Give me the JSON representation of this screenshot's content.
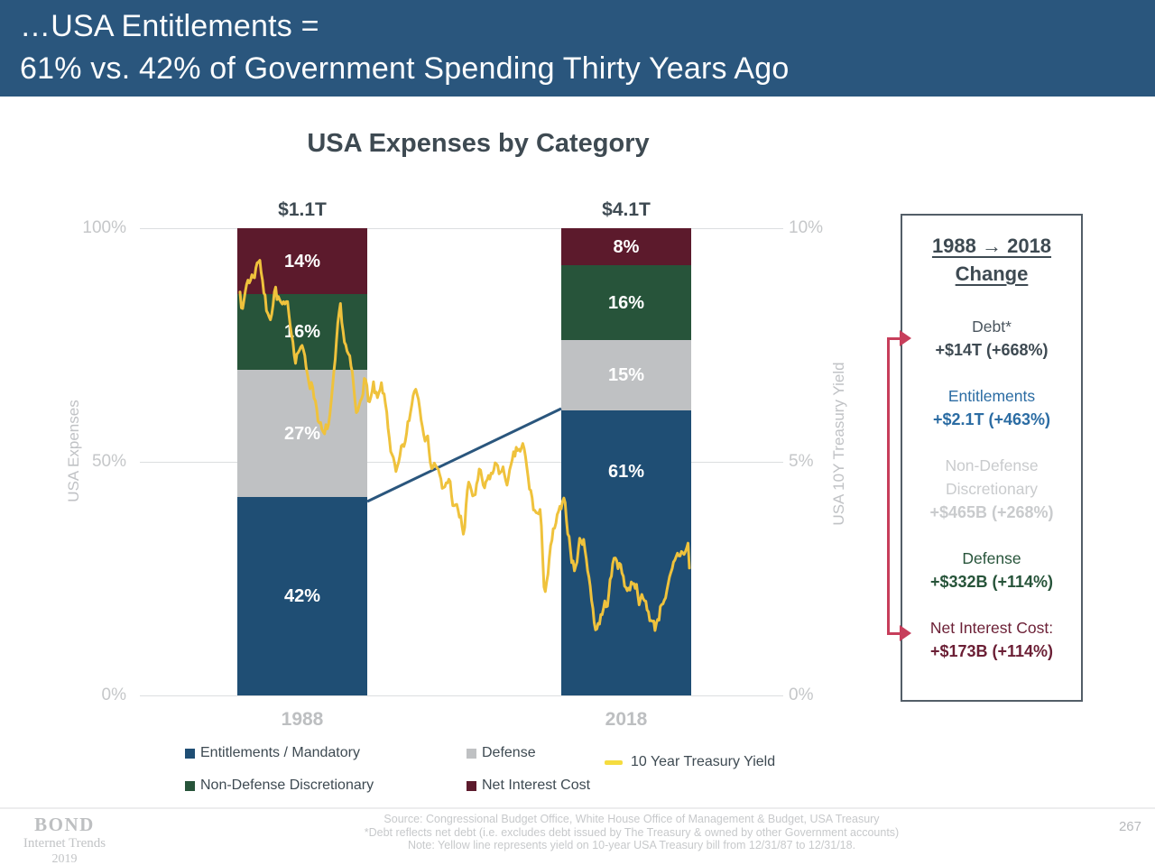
{
  "header": {
    "title_line1": "…USA Entitlements =",
    "title_line2": "61% vs. 42% of Government Spending Thirty Years Ago",
    "background_color": "#2A567D"
  },
  "chart_data": {
    "type": "bar",
    "subtype": "stacked-100pct-columns-with-line-overlay",
    "title": "USA Expenses by Category",
    "categories": [
      "1988",
      "2018"
    ],
    "bar_totals": [
      "$1.1T",
      "$4.1T"
    ],
    "series": [
      {
        "name": "Entitlements / Mandatory",
        "color": "#1F4E74",
        "values": [
          42,
          61
        ]
      },
      {
        "name": "Defense",
        "color": "#BFC1C3",
        "values": [
          27,
          15
        ]
      },
      {
        "name": "Non-Defense Discretionary",
        "color": "#27543A",
        "values": [
          16,
          16
        ]
      },
      {
        "name": "Net Interest Cost",
        "color": "#5C1A2C",
        "values": [
          14,
          8
        ]
      }
    ],
    "left_axis": {
      "label": "USA Expenses",
      "ticks": [
        "100%",
        "50%",
        "0%"
      ],
      "range": [
        0,
        100
      ]
    },
    "right_axis": {
      "label": "USA 10Y Treasury Yield",
      "ticks": [
        "10%",
        "5%",
        "0%"
      ],
      "range": [
        0,
        10
      ]
    },
    "connector_line": {
      "meaning": "links 42% (1988) to 61% (2018) Entitlements share",
      "color": "#2A567D"
    },
    "line_series": {
      "name": "10 Year Treasury Yield",
      "color": "#EFC23C",
      "x_unit": "years after 12/31/87",
      "t": [
        0,
        0.2,
        0.5,
        0.9,
        1.2,
        1.35,
        1.6,
        1.9,
        2.1,
        2.4,
        2.6,
        3.0,
        3.4,
        3.8,
        4.2,
        4.6,
        5.0,
        5.4,
        5.8,
        6.1,
        6.4,
        6.9,
        7.2,
        7.5,
        7.8,
        8.05,
        8.3,
        8.55,
        8.9,
        9.2,
        9.5,
        9.8,
        10.1,
        10.45,
        10.8,
        11.1,
        11.5,
        11.8,
        12.1,
        12.5,
        12.8,
        13.2,
        13.6,
        14.0,
        14.4,
        14.8,
        15.1,
        15.45,
        15.7,
        16.1,
        16.5,
        16.9,
        17.3,
        17.8,
        18.3,
        18.8,
        19.2,
        19.55,
        19.9,
        20.3,
        20.7,
        21.0,
        21.4,
        21.8,
        22.3,
        22.7,
        23.1,
        23.5,
        23.9,
        24.2,
        24.55,
        24.9,
        25.3,
        25.7,
        26.0,
        26.4,
        26.8,
        27.2,
        27.6,
        28.0,
        28.35,
        28.6,
        28.9,
        29.3,
        29.7,
        30.0,
        30.4,
        30.7,
        30.92,
        31.0
      ],
      "yield_pct": [
        8.8,
        8.3,
        8.9,
        9.0,
        9.3,
        9.5,
        8.9,
        8.1,
        8.2,
        8.9,
        8.6,
        8.2,
        8.0,
        7.4,
        7.6,
        6.9,
        6.7,
        6.1,
        5.4,
        5.7,
        6.3,
        8.0,
        7.5,
        7.1,
        6.5,
        5.7,
        6.3,
        6.9,
        6.3,
        6.5,
        6.1,
        6.4,
        5.9,
        5.2,
        4.5,
        4.9,
        5.4,
        6.0,
        6.7,
        6.2,
        5.9,
        5.1,
        5.0,
        4.2,
        4.6,
        4.0,
        3.8,
        3.4,
        4.4,
        4.2,
        4.6,
        4.2,
        4.6,
        4.9,
        4.6,
        4.8,
        5.1,
        5.2,
        4.4,
        3.9,
        3.8,
        2.2,
        3.0,
        3.6,
        3.9,
        3.3,
        2.7,
        3.4,
        3.1,
        2.2,
        1.5,
        1.8,
        2.0,
        2.7,
        3.0,
        2.6,
        2.3,
        2.6,
        2.2,
        1.9,
        1.7,
        1.4,
        1.8,
        2.3,
        2.4,
        2.6,
        2.9,
        3.1,
        3.2,
        2.7
      ]
    }
  },
  "legend": {
    "columns": [
      {
        "items": [
          {
            "label": "Entitlements / Mandatory",
            "color": "#1F4E74"
          },
          {
            "label": "Non-Defense Discretionary",
            "color": "#27543A"
          }
        ]
      },
      {
        "items": [
          {
            "label": "Defense",
            "color": "#BFC1C3"
          },
          {
            "label": "Net Interest Cost",
            "color": "#5C1A2C"
          }
        ]
      }
    ],
    "line_item": {
      "label": "10 Year Treasury Yield",
      "color": "#F5DC3F"
    }
  },
  "change_panel": {
    "heading_line1": "1988 → 2018",
    "heading_line2": "Change",
    "items": [
      {
        "lines": [
          "Debt*"
        ],
        "value": "+$14T (+668%)",
        "label_color": "#4A555E",
        "value_color": "#3E4A52",
        "arrow": true
      },
      {
        "lines": [
          "Entitlements"
        ],
        "value": "+$2.1T (+463%)",
        "label_color": "#2B6CA3",
        "value_color": "#2B6CA3",
        "arrow": false
      },
      {
        "lines": [
          "Non-Defense",
          "Discretionary"
        ],
        "value": "+$465B (+268%)",
        "label_color": "#C9CBCD",
        "value_color": "#C9CBCD",
        "arrow": false
      },
      {
        "lines": [
          "Defense"
        ],
        "value": "+$332B (+114%)",
        "label_color": "#27543A",
        "value_color": "#27543A",
        "arrow": false
      },
      {
        "lines": [
          "Net Interest Cost:"
        ],
        "value": "+$173B (+114%)",
        "label_color": "#6B1F35",
        "value_color": "#6B1F35",
        "arrow": true
      }
    ],
    "connector_color": "#C73E5B"
  },
  "footer": {
    "lines": [
      "Source: Congressional Budget Office, White House Office of Management & Budget, USA Treasury",
      "*Debt reflects net debt (i.e. excludes debt issued by The Treasury & owned by other Government accounts)",
      "Note: Yellow line represents yield on 10-year USA Treasury bill from 12/31/87 to 12/31/18."
    ]
  },
  "branding": {
    "name": "BOND",
    "line2": "Internet Trends",
    "line3": "2019"
  },
  "page_number": "267"
}
